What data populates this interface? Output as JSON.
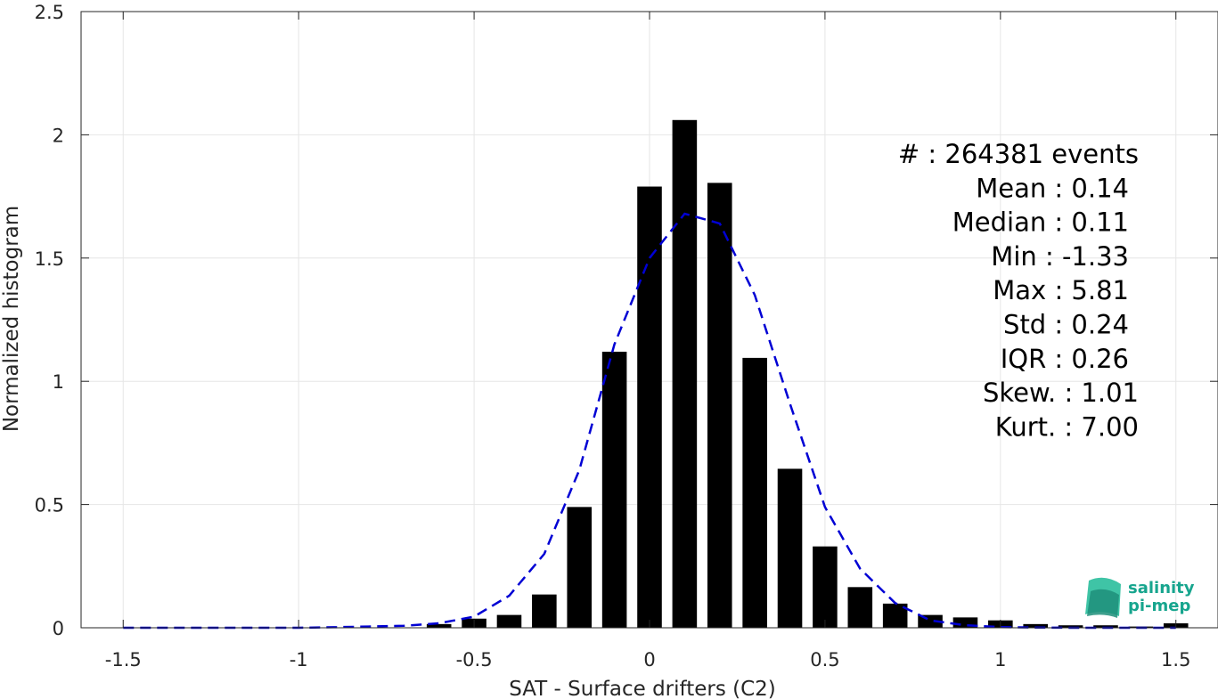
{
  "chart_data": {
    "type": "bar",
    "xlabel": "SAT - Surface drifters (C2)",
    "ylabel": "Normalized histogram",
    "xlim": [
      -1.62,
      1.62
    ],
    "ylim": [
      0,
      2.5
    ],
    "xticks": [
      "-1.5",
      "-1",
      "-0.5",
      "0",
      "0.5",
      "1",
      "1.5"
    ],
    "xtick_values": [
      -1.5,
      -1,
      -0.5,
      0,
      0.5,
      1,
      1.5
    ],
    "yticks": [
      "0",
      "0.5",
      "1",
      "1.5",
      "2",
      "2.5"
    ],
    "ytick_values": [
      0,
      0.5,
      1,
      1.5,
      2,
      2.5
    ],
    "grid": true,
    "bar_color": "#000000",
    "bar_width": 0.07,
    "bins": [
      -0.6,
      -0.5,
      -0.4,
      -0.3,
      -0.2,
      -0.1,
      0.0,
      0.1,
      0.2,
      0.3,
      0.4,
      0.5,
      0.6,
      0.7,
      0.8,
      0.9,
      1.0,
      1.1,
      1.2,
      1.3,
      1.4,
      1.5
    ],
    "values": [
      0.015,
      0.037,
      0.052,
      0.135,
      0.49,
      1.12,
      1.79,
      2.06,
      1.805,
      1.095,
      0.645,
      0.33,
      0.165,
      0.098,
      0.052,
      0.042,
      0.03,
      0.015,
      0.01,
      0.01,
      0.005,
      0.018
    ],
    "fit": {
      "color": "#0000d4",
      "style": "dashed",
      "x": [
        -1.5,
        -1.4,
        -1.3,
        -1.2,
        -1.1,
        -1.0,
        -0.9,
        -0.8,
        -0.7,
        -0.6,
        -0.5,
        -0.4,
        -0.3,
        -0.2,
        -0.1,
        0.0,
        0.1,
        0.2,
        0.3,
        0.4,
        0.5,
        0.6,
        0.7,
        0.8,
        0.9,
        1.0,
        1.1,
        1.2,
        1.3,
        1.4,
        1.5
      ],
      "y": [
        0,
        0,
        0,
        0,
        0,
        0,
        0.002,
        0.005,
        0.008,
        0.018,
        0.045,
        0.13,
        0.3,
        0.64,
        1.15,
        1.5,
        1.68,
        1.64,
        1.35,
        0.91,
        0.49,
        0.24,
        0.1,
        0.03,
        0.01,
        0.003,
        0.001,
        0,
        0,
        0,
        0
      ]
    },
    "stats": [
      "#  : 264381 events",
      "Mean : 0.14",
      "Median : 0.11",
      "Min : -1.33",
      "Max : 5.81",
      "Std : 0.24",
      "IQR : 0.26",
      "Skew. : 1.01",
      "Kurt. : 7.00"
    ]
  },
  "logo": {
    "line1": "salinity",
    "line2": "pi-mep",
    "color": "#17a58e"
  }
}
